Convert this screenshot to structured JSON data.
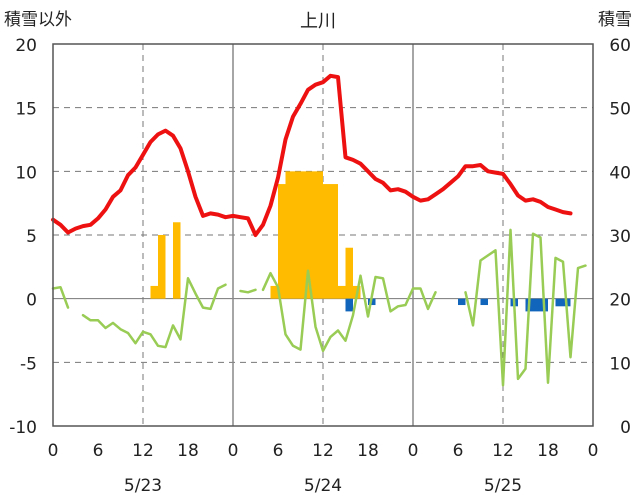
{
  "chart_data": {
    "type": "bar",
    "title": "上川",
    "left_axis_title": "積雪以外",
    "right_axis_title": "積雪",
    "left_ylim": [
      -10,
      20
    ],
    "left_ticks": [
      "20",
      "15",
      "10",
      "5",
      "0",
      "-5",
      "-10"
    ],
    "right_ylim": [
      0,
      60
    ],
    "right_ticks": [
      "60",
      "50",
      "40",
      "30",
      "20",
      "10",
      "0"
    ],
    "x_range_hours": [
      0,
      72
    ],
    "x_ticks": [
      "0",
      "6",
      "12",
      "18",
      "0",
      "6",
      "12",
      "18",
      "0",
      "6",
      "12",
      "18",
      "0"
    ],
    "dates": [
      "5/23",
      "5/24",
      "5/25"
    ],
    "grid": true,
    "colors": {
      "temperature": "#ee1111",
      "wind": "#99cc55",
      "precip_positive": "#ffbb00",
      "precip_negative": "#1166bb",
      "grid": "#777777",
      "frame": "#555555"
    },
    "series": [
      {
        "key": "temperature",
        "points": [
          [
            0,
            6.2
          ],
          [
            0.5,
            6.0
          ],
          [
            1,
            5.8
          ],
          [
            2,
            5.2
          ],
          [
            3,
            5.5
          ],
          [
            4,
            5.7
          ],
          [
            5,
            5.8
          ],
          [
            6,
            6.3
          ],
          [
            7,
            7.0
          ],
          [
            8,
            8.0
          ],
          [
            9,
            8.5
          ],
          [
            10,
            9.7
          ],
          [
            11,
            10.3
          ],
          [
            12,
            11.3
          ],
          [
            13,
            12.3
          ],
          [
            14,
            12.9
          ],
          [
            15,
            13.2
          ],
          [
            16,
            12.8
          ],
          [
            17,
            11.8
          ],
          [
            18,
            10.0
          ],
          [
            19,
            8.0
          ],
          [
            20,
            6.5
          ],
          [
            21,
            6.7
          ],
          [
            22,
            6.6
          ],
          [
            23,
            6.4
          ],
          [
            24,
            6.5
          ],
          [
            25,
            6.4
          ],
          [
            26,
            6.3
          ],
          [
            27,
            5.0
          ],
          [
            28,
            5.8
          ],
          [
            29,
            7.3
          ],
          [
            30,
            9.5
          ],
          [
            31,
            12.5
          ],
          [
            32,
            14.3
          ],
          [
            33,
            15.3
          ],
          [
            34,
            16.4
          ],
          [
            35,
            16.8
          ],
          [
            36,
            17.0
          ],
          [
            37,
            17.5
          ],
          [
            38,
            17.4
          ],
          [
            39,
            11.1
          ],
          [
            40,
            10.9
          ],
          [
            41,
            10.6
          ],
          [
            42,
            10.0
          ],
          [
            43,
            9.4
          ],
          [
            44,
            9.1
          ],
          [
            45,
            8.5
          ],
          [
            46,
            8.6
          ],
          [
            47,
            8.4
          ],
          [
            48,
            8.0
          ],
          [
            49,
            7.7
          ],
          [
            50,
            7.8
          ],
          [
            51,
            8.2
          ],
          [
            52,
            8.6
          ],
          [
            53,
            9.1
          ],
          [
            54,
            9.6
          ],
          [
            55,
            10.4
          ],
          [
            56,
            10.4
          ],
          [
            57,
            10.5
          ],
          [
            58,
            10.0
          ],
          [
            59,
            9.9
          ],
          [
            60,
            9.8
          ],
          [
            61,
            9.0
          ],
          [
            62,
            8.1
          ],
          [
            63,
            7.7
          ],
          [
            64,
            7.8
          ],
          [
            65,
            7.6
          ],
          [
            66,
            7.2
          ],
          [
            67,
            7.0
          ],
          [
            68,
            6.8
          ],
          [
            69,
            6.7
          ]
        ]
      },
      {
        "key": "wind",
        "segments": [
          [
            [
              0,
              0.8
            ],
            [
              1,
              0.9
            ],
            [
              2,
              -0.7
            ]
          ],
          [
            [
              4,
              -1.3
            ],
            [
              5,
              -1.7
            ],
            [
              6,
              -1.7
            ],
            [
              7,
              -2.3
            ],
            [
              8,
              -1.9
            ],
            [
              9,
              -2.4
            ],
            [
              10,
              -2.7
            ],
            [
              11,
              -3.5
            ],
            [
              12,
              -2.6
            ],
            [
              13,
              -2.8
            ],
            [
              14,
              -3.7
            ],
            [
              15,
              -3.8
            ],
            [
              16,
              -2.1
            ],
            [
              17,
              -3.2
            ],
            [
              18,
              1.6
            ],
            [
              19,
              0.4
            ],
            [
              20,
              -0.7
            ],
            [
              21,
              -0.8
            ],
            [
              22,
              0.8
            ],
            [
              23,
              1.1
            ]
          ],
          [
            [
              25,
              0.6
            ],
            [
              26,
              0.5
            ],
            [
              27,
              0.7
            ]
          ],
          [
            [
              28,
              0.7
            ],
            [
              29,
              2.0
            ],
            [
              30,
              0.9
            ],
            [
              31,
              -2.8
            ],
            [
              32,
              -3.7
            ],
            [
              33,
              -4.0
            ],
            [
              34,
              2.2
            ],
            [
              35,
              -2.2
            ],
            [
              36,
              -4.1
            ],
            [
              37,
              -3.0
            ],
            [
              38,
              -2.5
            ],
            [
              39,
              -3.3
            ],
            [
              40,
              -1.3
            ],
            [
              41,
              1.8
            ],
            [
              42,
              -1.4
            ],
            [
              43,
              1.7
            ],
            [
              44,
              1.6
            ],
            [
              45,
              -1.0
            ],
            [
              46,
              -0.6
            ],
            [
              47,
              -0.5
            ],
            [
              48,
              0.8
            ],
            [
              49,
              0.8
            ],
            [
              50,
              -0.8
            ],
            [
              51,
              0.5
            ]
          ],
          [
            [
              55,
              0.5
            ],
            [
              56,
              -2.1
            ],
            [
              57,
              3.0
            ],
            [
              58,
              3.4
            ],
            [
              59,
              3.8
            ],
            [
              60,
              -6.8
            ],
            [
              61,
              5.4
            ],
            [
              62,
              -6.3
            ],
            [
              63,
              -5.5
            ],
            [
              64,
              5.1
            ],
            [
              65,
              4.8
            ],
            [
              66,
              -6.6
            ],
            [
              67,
              3.2
            ],
            [
              68,
              2.9
            ],
            [
              69,
              -4.6
            ],
            [
              70,
              2.4
            ],
            [
              71,
              2.6
            ]
          ]
        ]
      }
    ],
    "precip_bars": [
      {
        "h": 13,
        "v": 1.0
      },
      {
        "h": 14,
        "v": 5.0
      },
      {
        "h": 16,
        "v": 6.0
      },
      {
        "h": 29,
        "v": 1.0
      },
      {
        "h": 30,
        "v": 9.0
      },
      {
        "h": 31,
        "v": 10.0
      },
      {
        "h": 32,
        "v": 10.0
      },
      {
        "h": 33,
        "v": 10.0
      },
      {
        "h": 34,
        "v": 10.0
      },
      {
        "h": 35,
        "v": 10.0
      },
      {
        "h": 36,
        "v": 9.0
      },
      {
        "h": 37,
        "v": 9.0
      },
      {
        "h": 38,
        "v": 1.0
      },
      {
        "h": 39,
        "v": 4.0
      },
      {
        "h": 40,
        "v": 1.0
      },
      {
        "h": 39,
        "v": -1.0
      },
      {
        "h": 42,
        "v": -0.5
      },
      {
        "h": 54,
        "v": -0.5
      },
      {
        "h": 57,
        "v": -0.5
      },
      {
        "h": 61,
        "v": -0.6
      },
      {
        "h": 63,
        "v": -1.0
      },
      {
        "h": 64,
        "v": -1.0
      },
      {
        "h": 65,
        "v": -1.0
      },
      {
        "h": 67,
        "v": -0.6
      },
      {
        "h": 68,
        "v": -0.6
      }
    ]
  }
}
